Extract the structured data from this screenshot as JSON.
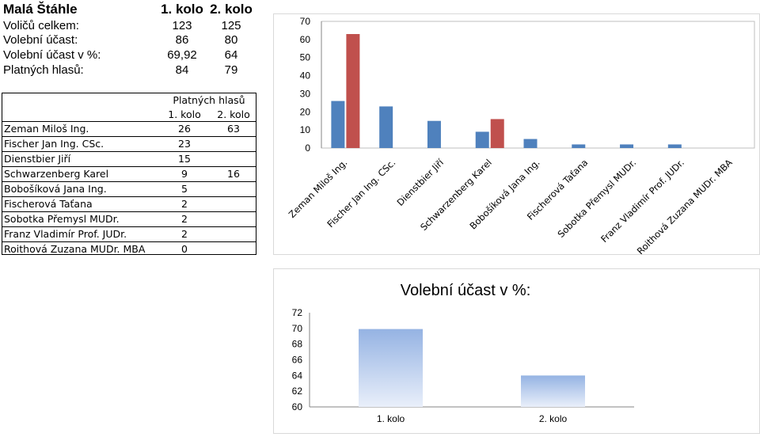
{
  "summary": {
    "title": "Malá Štáhle",
    "col1": "1. kolo",
    "col2": "2. kolo",
    "rows": [
      {
        "label": "Voličů celkem:",
        "v1": "123",
        "v2": "125"
      },
      {
        "label": "Volební účast:",
        "v1": "86",
        "v2": "80"
      },
      {
        "label": "Volební účast v %:",
        "v1": "69,92",
        "v2": "64"
      },
      {
        "label": "Platných hlasů:",
        "v1": "84",
        "v2": "79"
      }
    ]
  },
  "table": {
    "header": "Platných hlasů",
    "col1": "1. kolo",
    "col2": "2. kolo",
    "rows": [
      {
        "name": "Zeman Miloš Ing.",
        "v1": "26",
        "v2": "63"
      },
      {
        "name": "Fischer Jan Ing. CSc.",
        "v1": "23",
        "v2": ""
      },
      {
        "name": "Dienstbier Jiří",
        "v1": "15",
        "v2": ""
      },
      {
        "name": "Schwarzenberg Karel",
        "v1": "9",
        "v2": "16"
      },
      {
        "name": "Bobošíková Jana Ing.",
        "v1": "5",
        "v2": ""
      },
      {
        "name": "Fischerová Taťana",
        "v1": "2",
        "v2": ""
      },
      {
        "name": "Sobotka Přemysl MUDr.",
        "v1": "2",
        "v2": ""
      },
      {
        "name": "Franz Vladimír Prof. JUDr.",
        "v1": "2",
        "v2": ""
      },
      {
        "name": "Roithová Zuzana MUDr. MBA",
        "v1": "0",
        "v2": ""
      }
    ]
  },
  "chart_data": [
    {
      "type": "bar",
      "categories": [
        "Zeman Miloš Ing.",
        "Fischer Jan Ing. CSc.",
        "Dienstbier Jiří",
        "Schwarzenberg Karel",
        "Bobošíková Jana Ing.",
        "Fischerová Taťana",
        "Sobotka Přemysl MUDr.",
        "Franz Vladimír Prof. JUDr.",
        "Roithová Zuzana MUDr. MBA"
      ],
      "series": [
        {
          "values": [
            26,
            23,
            15,
            9,
            5,
            2,
            2,
            2,
            0
          ],
          "color": "#4f81bd"
        },
        {
          "values": [
            63,
            null,
            null,
            16,
            null,
            null,
            null,
            null,
            null
          ],
          "color": "#c0504d"
        }
      ],
      "ylim": [
        0,
        70
      ],
      "yticks": [
        "0",
        "10",
        "20",
        "30",
        "40",
        "50",
        "60",
        "70"
      ],
      "grid": false,
      "legend": "none"
    },
    {
      "type": "bar",
      "title": "Volební účast v %:",
      "categories": [
        "1. kolo",
        "2. kolo"
      ],
      "values": [
        69.92,
        64
      ],
      "color_top": "#95b3e3",
      "color_bottom": "#e9effa",
      "ylim": [
        60,
        72
      ],
      "yticks": [
        "60",
        "62",
        "64",
        "66",
        "68",
        "70",
        "72"
      ],
      "grid": false,
      "legend": "none"
    }
  ]
}
